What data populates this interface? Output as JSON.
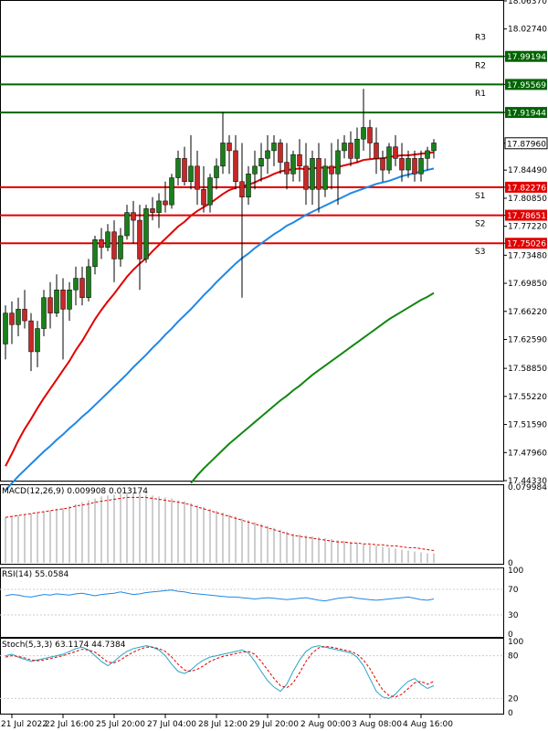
{
  "chart_data": {
    "type": "candlestick",
    "main": {
      "y_axis_ticks": [
        "18.06370",
        "18.02740",
        "17.99194",
        "17.95569",
        "17.91944",
        "17.87960",
        "17.84490",
        "17.82276",
        "17.80850",
        "17.78651",
        "17.77220",
        "17.75026",
        "17.73480",
        "17.69850",
        "17.66220",
        "17.62590",
        "17.58850",
        "17.55220",
        "17.51590",
        "17.47960",
        "17.44330"
      ],
      "ylim": [
        17.4433,
        18.0637
      ],
      "current_price": 17.8796,
      "levels": [
        {
          "name": "R3",
          "value": 17.99194,
          "label": "17.99194",
          "color": "#006400"
        },
        {
          "name": "R2",
          "value": 17.95569,
          "label": "17.95569",
          "color": "#006400"
        },
        {
          "name": "R1",
          "value": 17.91944,
          "label": "17.91944",
          "color": "#006400"
        },
        {
          "name": "S1",
          "value": 17.82276,
          "label": "17.82276",
          "color": "#e00000"
        },
        {
          "name": "S2",
          "value": 17.78651,
          "label": "17.78651",
          "color": "#e00000"
        },
        {
          "name": "S3",
          "value": 17.75026,
          "label": "17.75026",
          "color": "#e00000"
        }
      ],
      "candles": [
        [
          17.62,
          17.67,
          17.6,
          17.66
        ],
        [
          17.66,
          17.675,
          17.62,
          17.645
        ],
        [
          17.645,
          17.68,
          17.63,
          17.665
        ],
        [
          17.665,
          17.69,
          17.64,
          17.65
        ],
        [
          17.65,
          17.66,
          17.585,
          17.61
        ],
        [
          17.61,
          17.65,
          17.59,
          17.64
        ],
        [
          17.64,
          17.69,
          17.63,
          17.68
        ],
        [
          17.68,
          17.7,
          17.64,
          17.66
        ],
        [
          17.66,
          17.71,
          17.655,
          17.69
        ],
        [
          17.69,
          17.705,
          17.6,
          17.665
        ],
        [
          17.665,
          17.7,
          17.65,
          17.69
        ],
        [
          17.69,
          17.72,
          17.67,
          17.705
        ],
        [
          17.705,
          17.72,
          17.67,
          17.68
        ],
        [
          17.68,
          17.73,
          17.675,
          17.72
        ],
        [
          17.72,
          17.76,
          17.71,
          17.755
        ],
        [
          17.755,
          17.77,
          17.73,
          17.745
        ],
        [
          17.745,
          17.775,
          17.74,
          17.765
        ],
        [
          17.765,
          17.78,
          17.7,
          17.73
        ],
        [
          17.73,
          17.77,
          17.72,
          17.76
        ],
        [
          17.76,
          17.8,
          17.755,
          17.79
        ],
        [
          17.79,
          17.805,
          17.75,
          17.78
        ],
        [
          17.78,
          17.8,
          17.69,
          17.73
        ],
        [
          17.73,
          17.8,
          17.725,
          17.795
        ],
        [
          17.795,
          17.81,
          17.78,
          17.79
        ],
        [
          17.79,
          17.815,
          17.77,
          17.805
        ],
        [
          17.805,
          17.83,
          17.79,
          17.8
        ],
        [
          17.8,
          17.84,
          17.795,
          17.835
        ],
        [
          17.835,
          17.87,
          17.825,
          17.86
        ],
        [
          17.86,
          17.875,
          17.825,
          17.83
        ],
        [
          17.83,
          17.89,
          17.82,
          17.85
        ],
        [
          17.85,
          17.87,
          17.8,
          17.82
        ],
        [
          17.82,
          17.85,
          17.79,
          17.8
        ],
        [
          17.8,
          17.84,
          17.79,
          17.835
        ],
        [
          17.835,
          17.86,
          17.82,
          17.85
        ],
        [
          17.85,
          17.92,
          17.84,
          17.88
        ],
        [
          17.88,
          17.89,
          17.84,
          17.87
        ],
        [
          17.87,
          17.89,
          17.82,
          17.83
        ],
        [
          17.83,
          17.88,
          17.68,
          17.81
        ],
        [
          17.81,
          17.85,
          17.8,
          17.84
        ],
        [
          17.84,
          17.87,
          17.82,
          17.85
        ],
        [
          17.85,
          17.88,
          17.83,
          17.86
        ],
        [
          17.86,
          17.89,
          17.84,
          17.87
        ],
        [
          17.87,
          17.89,
          17.85,
          17.88
        ],
        [
          17.88,
          17.885,
          17.84,
          17.855
        ],
        [
          17.855,
          17.88,
          17.82,
          17.84
        ],
        [
          17.84,
          17.87,
          17.83,
          17.865
        ],
        [
          17.865,
          17.885,
          17.83,
          17.85
        ],
        [
          17.85,
          17.88,
          17.8,
          17.82
        ],
        [
          17.82,
          17.87,
          17.8,
          17.86
        ],
        [
          17.86,
          17.88,
          17.79,
          17.82
        ],
        [
          17.82,
          17.86,
          17.81,
          17.85
        ],
        [
          17.85,
          17.88,
          17.82,
          17.84
        ],
        [
          17.84,
          17.885,
          17.8,
          17.87
        ],
        [
          17.87,
          17.89,
          17.86,
          17.88
        ],
        [
          17.88,
          17.895,
          17.85,
          17.86
        ],
        [
          17.86,
          17.9,
          17.855,
          17.885
        ],
        [
          17.885,
          17.95,
          17.87,
          17.9
        ],
        [
          17.9,
          17.91,
          17.86,
          17.88
        ],
        [
          17.88,
          17.9,
          17.84,
          17.86
        ],
        [
          17.86,
          17.87,
          17.83,
          17.845
        ],
        [
          17.845,
          17.88,
          17.84,
          17.875
        ],
        [
          17.875,
          17.89,
          17.85,
          17.86
        ],
        [
          17.86,
          17.88,
          17.83,
          17.845
        ],
        [
          17.845,
          17.87,
          17.835,
          17.86
        ],
        [
          17.86,
          17.87,
          17.83,
          17.84
        ],
        [
          17.84,
          17.87,
          17.83,
          17.86
        ],
        [
          17.86,
          17.875,
          17.845,
          17.87
        ],
        [
          17.87,
          17.885,
          17.86,
          17.88
        ]
      ],
      "ma_short": {
        "color": "#e00000",
        "values": [
          17.462,
          17.478,
          17.495,
          17.51,
          17.523,
          17.537,
          17.55,
          17.562,
          17.574,
          17.586,
          17.598,
          17.612,
          17.624,
          17.638,
          17.652,
          17.664,
          17.675,
          17.685,
          17.696,
          17.707,
          17.716,
          17.724,
          17.731,
          17.74,
          17.748,
          17.756,
          17.764,
          17.772,
          17.778,
          17.786,
          17.792,
          17.797,
          17.802,
          17.808,
          17.814,
          17.819,
          17.822,
          17.824,
          17.826,
          17.829,
          17.833,
          17.836,
          17.84,
          17.843,
          17.845,
          17.846,
          17.847,
          17.846,
          17.847,
          17.848,
          17.848,
          17.848,
          17.849,
          17.851,
          17.853,
          17.855,
          17.858,
          17.859,
          17.86,
          17.86,
          17.862,
          17.863,
          17.864,
          17.864,
          17.865,
          17.866,
          17.867,
          17.868
        ]
      },
      "ma_mid": {
        "color": "#1e88e5",
        "values": [
          17.431,
          17.44,
          17.449,
          17.457,
          17.465,
          17.473,
          17.481,
          17.488,
          17.496,
          17.503,
          17.511,
          17.518,
          17.526,
          17.533,
          17.541,
          17.549,
          17.557,
          17.565,
          17.573,
          17.581,
          17.59,
          17.598,
          17.606,
          17.615,
          17.623,
          17.632,
          17.64,
          17.649,
          17.657,
          17.665,
          17.674,
          17.683,
          17.691,
          17.7,
          17.708,
          17.716,
          17.724,
          17.731,
          17.737,
          17.744,
          17.75,
          17.756,
          17.762,
          17.767,
          17.773,
          17.777,
          17.782,
          17.787,
          17.791,
          17.795,
          17.799,
          17.803,
          17.807,
          17.811,
          17.815,
          17.818,
          17.821,
          17.824,
          17.827,
          17.829,
          17.831,
          17.834,
          17.837,
          17.839,
          17.841,
          17.843,
          17.845,
          17.847
        ]
      },
      "ma_long": {
        "color": "#118811",
        "values": [
          17.44,
          17.45,
          17.459,
          17.467,
          17.475,
          17.483,
          17.491,
          17.498,
          17.505,
          17.512,
          17.519,
          17.526,
          17.533,
          17.54,
          17.547,
          17.553,
          17.56,
          17.566,
          17.573,
          17.58,
          17.586,
          17.592,
          17.598,
          17.604,
          17.61,
          17.616,
          17.622,
          17.628,
          17.634,
          17.64,
          17.646,
          17.652,
          17.657,
          17.662,
          17.667,
          17.672,
          17.677,
          17.681,
          17.686
        ]
      },
      "ma_long_start_index": 29
    },
    "macd": {
      "label": "MACD(12,26,9) 0.009908 0.013174",
      "y_axis_ticks": [
        "0.079984",
        "0"
      ],
      "ylim": [
        0,
        0.08
      ],
      "bars": [
        0.048,
        0.049,
        0.05,
        0.051,
        0.052,
        0.053,
        0.054,
        0.055,
        0.057,
        0.058,
        0.06,
        0.062,
        0.064,
        0.066,
        0.068,
        0.07,
        0.071,
        0.072,
        0.073,
        0.074,
        0.074,
        0.073,
        0.072,
        0.071,
        0.07,
        0.069,
        0.068,
        0.066,
        0.065,
        0.063,
        0.061,
        0.059,
        0.057,
        0.055,
        0.053,
        0.051,
        0.049,
        0.047,
        0.045,
        0.043,
        0.041,
        0.039,
        0.037,
        0.035,
        0.033,
        0.031,
        0.03,
        0.029,
        0.028,
        0.027,
        0.026,
        0.025,
        0.024,
        0.023,
        0.022,
        0.021,
        0.02,
        0.019,
        0.018,
        0.017,
        0.016,
        0.015,
        0.014,
        0.013,
        0.012,
        0.011,
        0.01,
        0.01
      ],
      "signal": [
        0.048,
        0.049,
        0.05,
        0.051,
        0.052,
        0.053,
        0.054,
        0.055,
        0.056,
        0.057,
        0.058,
        0.06,
        0.061,
        0.062,
        0.064,
        0.065,
        0.066,
        0.067,
        0.068,
        0.069,
        0.069,
        0.069,
        0.069,
        0.068,
        0.067,
        0.066,
        0.065,
        0.064,
        0.063,
        0.061,
        0.059,
        0.057,
        0.055,
        0.053,
        0.051,
        0.049,
        0.047,
        0.045,
        0.043,
        0.041,
        0.039,
        0.037,
        0.035,
        0.033,
        0.031,
        0.029,
        0.028,
        0.027,
        0.026,
        0.025,
        0.024,
        0.023,
        0.022,
        0.022,
        0.021,
        0.021,
        0.02,
        0.02,
        0.019,
        0.019,
        0.018,
        0.018,
        0.017,
        0.016,
        0.016,
        0.015,
        0.014,
        0.013
      ]
    },
    "rsi": {
      "label": "RSI(14) 55.0584",
      "y_axis_ticks": [
        "100",
        "70",
        "30",
        "0"
      ],
      "ylim": [
        0,
        100
      ],
      "values": [
        60,
        62,
        61,
        59,
        58,
        60,
        62,
        61,
        63,
        62,
        61,
        63,
        64,
        62,
        60,
        62,
        63,
        64,
        66,
        64,
        62,
        63,
        65,
        66,
        67,
        68,
        69,
        67,
        66,
        64,
        63,
        62,
        61,
        60,
        59,
        58,
        58,
        57,
        56,
        55,
        56,
        57,
        56,
        55,
        54,
        55,
        56,
        57,
        55,
        53,
        52,
        54,
        56,
        57,
        58,
        56,
        55,
        54,
        53,
        54,
        55,
        56,
        57,
        58,
        56,
        54,
        53,
        55
      ]
    },
    "stoch": {
      "label": "Stoch(5,3,3) 63.1174 44.7384",
      "y_axis_ticks": [
        "100",
        "80",
        "20",
        "0"
      ],
      "ylim": [
        0,
        100
      ],
      "k": [
        80,
        82,
        78,
        75,
        72,
        74,
        76,
        78,
        80,
        82,
        86,
        90,
        92,
        88,
        80,
        72,
        66,
        72,
        80,
        86,
        90,
        92,
        94,
        92,
        88,
        80,
        68,
        58,
        55,
        60,
        68,
        74,
        78,
        80,
        82,
        84,
        86,
        88,
        84,
        72,
        58,
        45,
        36,
        30,
        40,
        58,
        74,
        86,
        92,
        94,
        92,
        90,
        88,
        86,
        84,
        78,
        66,
        48,
        30,
        22,
        20,
        26,
        36,
        44,
        48,
        40,
        34,
        38
      ],
      "d": [
        78,
        80,
        79,
        77,
        74,
        73,
        74,
        76,
        78,
        80,
        83,
        86,
        89,
        88,
        85,
        78,
        71,
        70,
        74,
        80,
        85,
        89,
        92,
        92,
        90,
        86,
        78,
        68,
        60,
        58,
        61,
        66,
        72,
        76,
        79,
        81,
        83,
        85,
        86,
        82,
        72,
        60,
        48,
        38,
        35,
        42,
        56,
        72,
        84,
        91,
        93,
        92,
        90,
        88,
        86,
        82,
        74,
        62,
        46,
        32,
        24,
        22,
        26,
        34,
        42,
        44,
        40,
        44
      ]
    },
    "x_tick_labels": [
      "21 Jul 2022",
      "22 Jul 16:00",
      "25 Jul 20:00",
      "27 Jul 04:00",
      "28 Jul 12:00",
      "29 Jul 20:00",
      "2 Aug 00:00",
      "3 Aug 08:00",
      "4 Aug 16:00"
    ],
    "x_tick_candle_index": [
      1,
      9,
      17,
      25,
      33,
      41,
      49,
      57,
      65
    ]
  }
}
